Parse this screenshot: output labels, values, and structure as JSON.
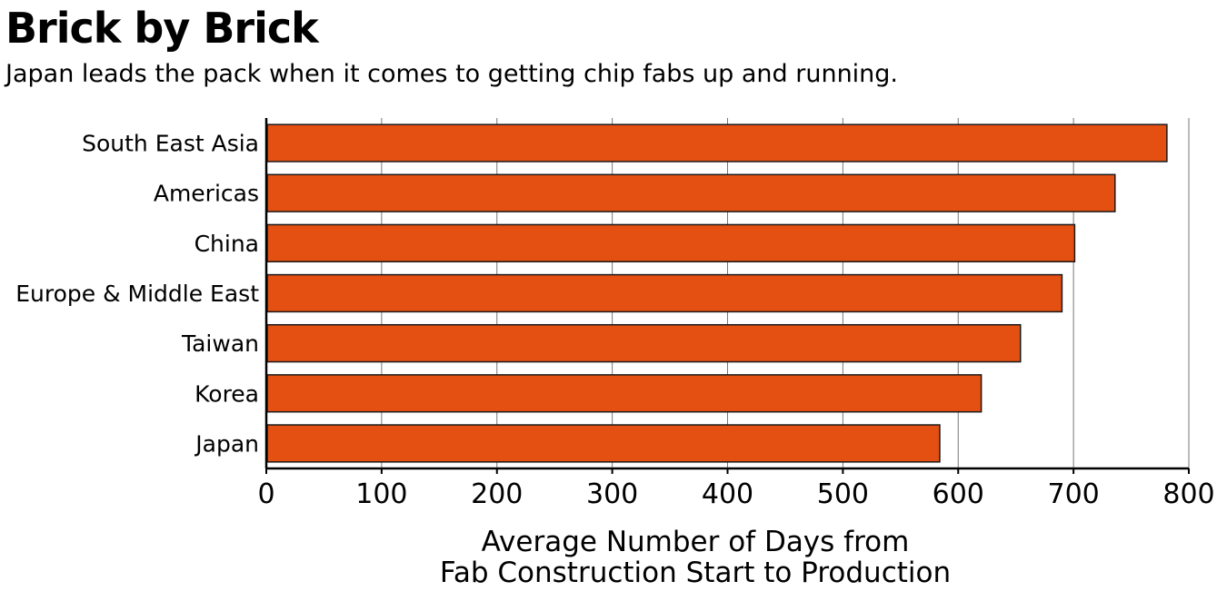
{
  "header": {
    "title": "Brick by Brick",
    "subtitle": "Japan leads the pack when it comes to getting chip fabs up and running."
  },
  "chart_data": {
    "type": "bar",
    "orientation": "horizontal",
    "title": "Brick by Brick",
    "subtitle": "Japan leads the pack when it comes to getting chip fabs up and running.",
    "categories": [
      "South East Asia",
      "Americas",
      "China",
      "Europe & Middle East",
      "Taiwan",
      "Korea",
      "Japan"
    ],
    "values": [
      781,
      736,
      701,
      690,
      654,
      620,
      584
    ],
    "xlabel_lines": [
      "Average Number of Days from",
      "Fab Construction Start to Production"
    ],
    "ylabel": "",
    "xlim": [
      0,
      800
    ],
    "xticks": [
      0,
      100,
      200,
      300,
      400,
      500,
      600,
      700,
      800
    ],
    "grid": "vertical",
    "legend": "none",
    "colors": {
      "bar": "#e44f12",
      "bar_outline": "#1a1a1a",
      "grid": "#777777",
      "axis": "#000000"
    }
  }
}
